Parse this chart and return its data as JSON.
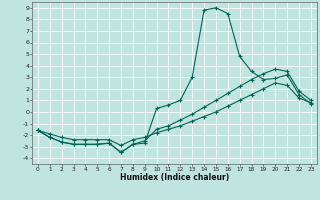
{
  "xlabel": "Humidex (Indice chaleur)",
  "xlim": [
    -0.5,
    23.5
  ],
  "ylim": [
    -4.5,
    9.5
  ],
  "xticks": [
    0,
    1,
    2,
    3,
    4,
    5,
    6,
    7,
    8,
    9,
    10,
    11,
    12,
    13,
    14,
    15,
    16,
    17,
    18,
    19,
    20,
    21,
    22,
    23
  ],
  "yticks": [
    -4,
    -3,
    -2,
    -1,
    0,
    1,
    2,
    3,
    4,
    5,
    6,
    7,
    8,
    9
  ],
  "bg_color": "#c0e4e0",
  "line_color": "#006655",
  "grid_color": "#ffffff",
  "curve1_x": [
    0,
    1,
    2,
    3,
    4,
    5,
    6,
    7,
    8,
    9,
    10,
    11,
    12,
    13,
    14,
    15,
    16,
    17,
    18,
    19,
    20,
    21,
    22,
    23
  ],
  "curve1_y": [
    -1.6,
    -2.2,
    -2.6,
    -2.8,
    -2.8,
    -2.8,
    -2.7,
    -3.5,
    -2.8,
    -2.7,
    0.3,
    0.6,
    1.0,
    3.0,
    8.8,
    9.0,
    8.5,
    4.8,
    3.5,
    2.8,
    2.9,
    3.2,
    1.5,
    0.7
  ],
  "curve2_x": [
    0,
    1,
    2,
    3,
    4,
    5,
    6,
    7,
    8,
    9,
    10,
    11,
    12,
    13,
    14,
    15,
    16,
    17,
    18,
    19,
    20,
    21,
    22,
    23
  ],
  "curve2_y": [
    -1.6,
    -2.2,
    -2.6,
    -2.8,
    -2.8,
    -2.8,
    -2.7,
    -3.5,
    -2.8,
    -2.5,
    -1.5,
    -1.2,
    -0.7,
    -0.2,
    0.4,
    1.0,
    1.6,
    2.2,
    2.8,
    3.3,
    3.7,
    3.5,
    1.8,
    1.0
  ],
  "curve3_x": [
    0,
    1,
    2,
    3,
    4,
    5,
    6,
    7,
    8,
    9,
    10,
    11,
    12,
    13,
    14,
    15,
    16,
    17,
    18,
    19,
    20,
    21,
    22,
    23
  ],
  "curve3_y": [
    -1.6,
    -1.9,
    -2.2,
    -2.4,
    -2.4,
    -2.4,
    -2.4,
    -2.9,
    -2.4,
    -2.2,
    -1.8,
    -1.5,
    -1.2,
    -0.8,
    -0.4,
    0.0,
    0.5,
    1.0,
    1.5,
    2.0,
    2.5,
    2.3,
    1.2,
    0.8
  ]
}
